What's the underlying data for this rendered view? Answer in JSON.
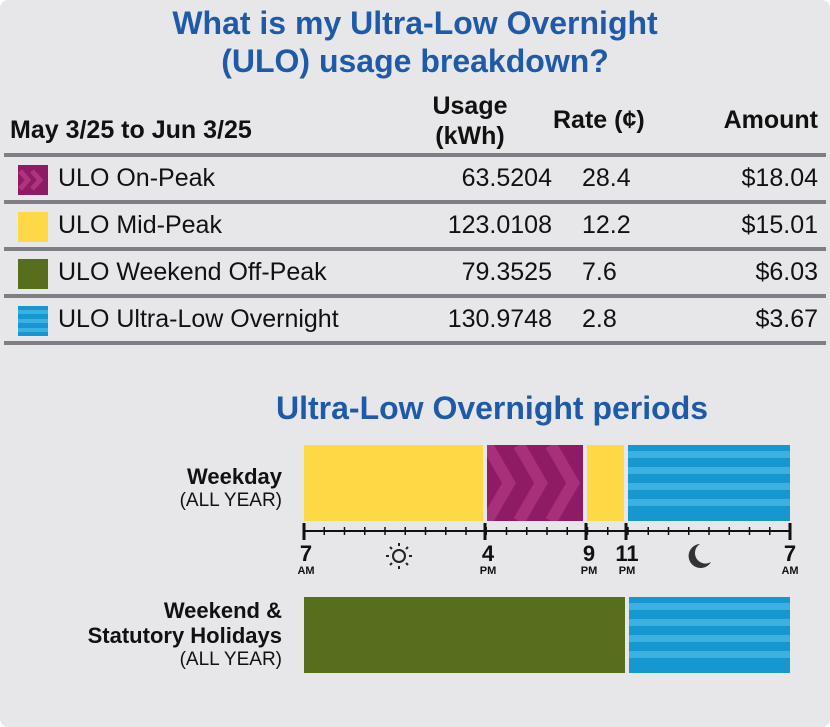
{
  "title": {
    "line1": "What is my Ultra-Low Overnight",
    "line2": "(ULO) usage breakdown?"
  },
  "table": {
    "period": "May 3/25 to Jun 3/25",
    "usage_header_1": "Usage",
    "usage_header_2": "(kWh)",
    "rate_header": "Rate (¢)",
    "amount_header": "Amount",
    "rows": [
      {
        "label": "ULO On-Peak",
        "usage": "63.5204",
        "rate": "28.4",
        "amount": "$18.04",
        "swatch": "on-peak-swatch",
        "color": "#8e1b63"
      },
      {
        "label": "ULO Mid-Peak",
        "usage": "123.0108",
        "rate": "12.2",
        "amount": "$15.01",
        "swatch": "mid-peak-swatch",
        "color": "#ffd845"
      },
      {
        "label": "ULO Weekend Off-Peak",
        "usage": "79.3525",
        "rate": "7.6",
        "amount": "$6.03",
        "swatch": "weekend-off-peak-swatch",
        "color": "#566e1e"
      },
      {
        "label": "ULO Ultra-Low Overnight",
        "usage": "130.9748",
        "rate": "2.8",
        "amount": "$3.67",
        "swatch": "ultra-low-overnight-swatch",
        "color": "#1797cf"
      }
    ]
  },
  "periods": {
    "title": "Ultra-Low Overnight periods",
    "weekday": {
      "label": "Weekday",
      "sub": "(ALL YEAR)"
    },
    "weekend": {
      "label_1": "Weekend &",
      "label_2": "Statutory Holidays",
      "sub": "(ALL YEAR)"
    },
    "ticks": [
      {
        "num": "7",
        "ampm": "AM"
      },
      {
        "num": "4",
        "ampm": "PM"
      },
      {
        "num": "9",
        "ampm": "PM"
      },
      {
        "num": "11",
        "ampm": "PM"
      },
      {
        "num": "7",
        "ampm": "AM"
      }
    ],
    "icons": {
      "day": "sun-icon",
      "night": "moon-icon"
    }
  },
  "colors": {
    "title": "#1e5aa8",
    "on_peak": "#8e1b63",
    "mid_peak": "#ffd845",
    "weekend_off_peak": "#566e1e",
    "ultra_low": "#1797cf",
    "panel": "#e7e7e9"
  }
}
